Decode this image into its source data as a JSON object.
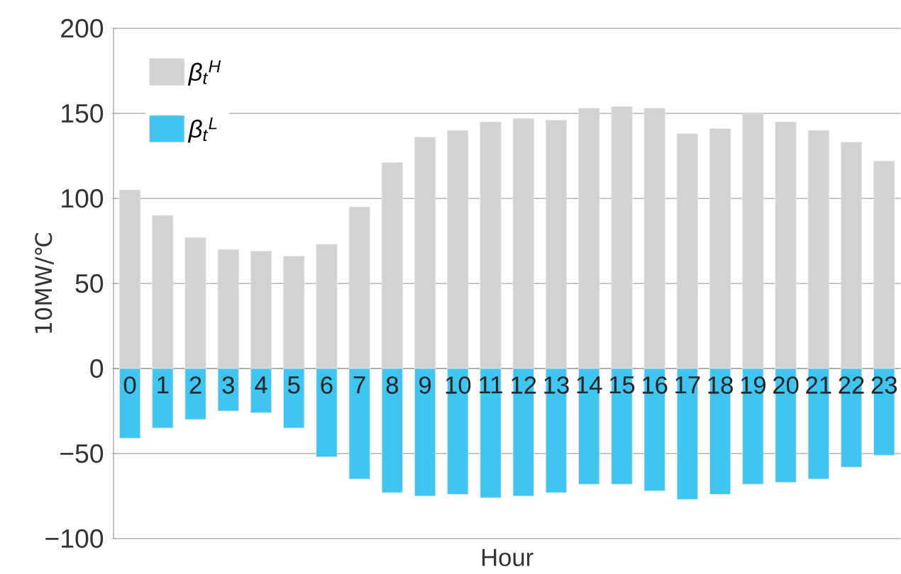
{
  "chart_data": {
    "type": "bar",
    "stacked": true,
    "xlabel": "Hour",
    "ylabel": "10MW/℃",
    "categories": [
      "0",
      "1",
      "2",
      "3",
      "4",
      "5",
      "6",
      "7",
      "8",
      "9",
      "10",
      "11",
      "12",
      "13",
      "14",
      "15",
      "16",
      "17",
      "18",
      "19",
      "20",
      "21",
      "22",
      "23"
    ],
    "series": [
      {
        "name": "β$_{t}$$^{H}$",
        "color": "#d1d2d4",
        "values": [
          105,
          90,
          77,
          70,
          69,
          66,
          73,
          95,
          121,
          136,
          140,
          145,
          147,
          146,
          153,
          154,
          153,
          138,
          141,
          150,
          145,
          140,
          133,
          122
        ]
      },
      {
        "name": "β$_{t}$$^{L}$",
        "color": "#40c4f0",
        "values": [
          -41,
          -35,
          -30,
          -25,
          -26,
          -35,
          -52,
          -65,
          -73,
          -75,
          -74,
          -76,
          -75,
          -73,
          -68,
          -68,
          -72,
          -77,
          -74,
          -68,
          -67,
          -65,
          -58,
          -51
        ]
      }
    ],
    "ylim": [
      -100,
      200
    ],
    "yticks": [
      {
        "value": -100,
        "label": "−100"
      },
      {
        "value": -50,
        "label": "−50"
      },
      0,
      50,
      100,
      150,
      200
    ],
    "grid": "y",
    "legend": "top left"
  }
}
